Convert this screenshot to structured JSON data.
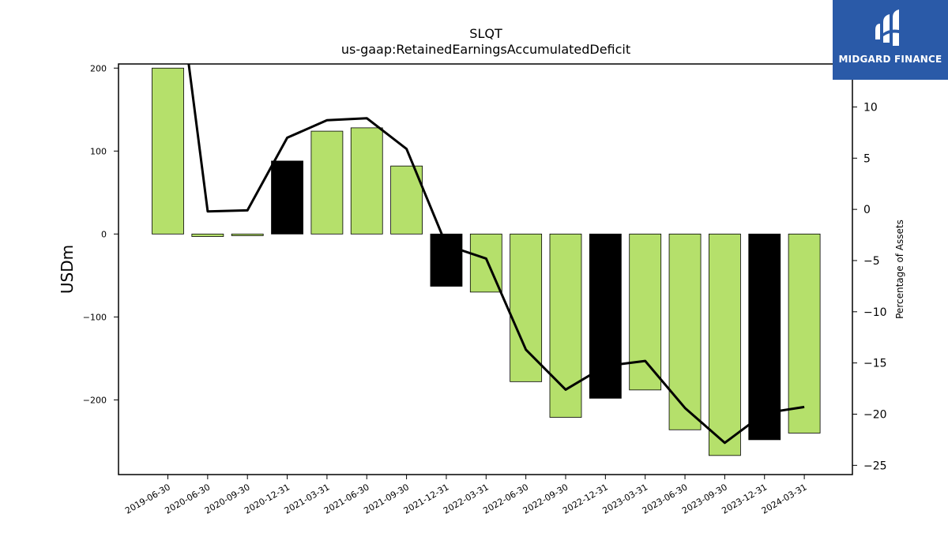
{
  "brand": {
    "name": "MIDGARD FINANCE",
    "bg_color": "#2a5aa8"
  },
  "chart_data": {
    "type": "bar",
    "title": "SLQT",
    "subtitle": "us-gaap:RetainedEarningsAccumulatedDeficit",
    "ylabel": "USDm",
    "y2label": "Percentage of Assets",
    "categories": [
      "2019-06-30",
      "2020-06-30",
      "2020-09-30",
      "2020-12-31",
      "2021-03-31",
      "2021-06-30",
      "2021-09-30",
      "2021-12-31",
      "2022-03-31",
      "2022-06-30",
      "2022-09-30",
      "2022-12-31",
      "2023-03-31",
      "2023-06-30",
      "2023-09-30",
      "2023-12-31",
      "2024-03-31"
    ],
    "series": [
      {
        "type": "bar",
        "values": [
          200,
          -3,
          -2,
          88,
          124,
          128,
          82,
          -63,
          -70,
          -178,
          -221,
          -198,
          -188,
          -236,
          -267,
          -248,
          -240
        ],
        "highlight": [
          false,
          false,
          false,
          true,
          false,
          false,
          false,
          true,
          false,
          false,
          false,
          true,
          false,
          false,
          false,
          true,
          false
        ]
      },
      {
        "type": "line",
        "axis": "right",
        "values": [
          30,
          -0.2,
          -0.1,
          7.0,
          8.7,
          8.9,
          5.9,
          -3.5,
          -4.8,
          -13.7,
          -17.6,
          -15.3,
          -14.8,
          -19.4,
          -22.8,
          -19.9,
          -19.3
        ]
      }
    ],
    "colors": {
      "bar": "#b5e06b",
      "bar_highlight": "#000000",
      "line": "#000000"
    },
    "ylim": [
      -290,
      205
    ],
    "y2lim": [
      -25.9,
      14.2
    ],
    "yticks": [
      -200,
      -100,
      0,
      100,
      200
    ],
    "y2ticks": [
      -25,
      -20,
      -15,
      -10,
      -5,
      0,
      5,
      10
    ],
    "grid": false,
    "legend": "none"
  }
}
